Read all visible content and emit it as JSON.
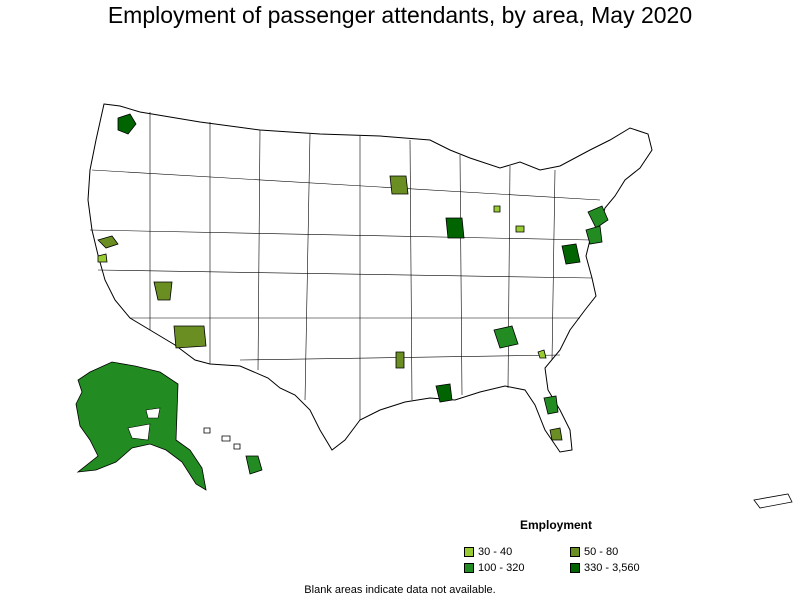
{
  "title": "Employment of passenger attendants, by area, May 2020",
  "legend": {
    "title": "Employment",
    "items": [
      {
        "label": "30 - 40",
        "color": "#99cc33"
      },
      {
        "label": "50 - 80",
        "color": "#6b8e23"
      },
      {
        "label": "100 - 320",
        "color": "#228b22"
      },
      {
        "label": "330 - 3,560",
        "color": "#006400"
      }
    ]
  },
  "footnote": "Blank areas indicate data not available.",
  "colors": {
    "border": "#000000",
    "blank": "#ffffff"
  }
}
